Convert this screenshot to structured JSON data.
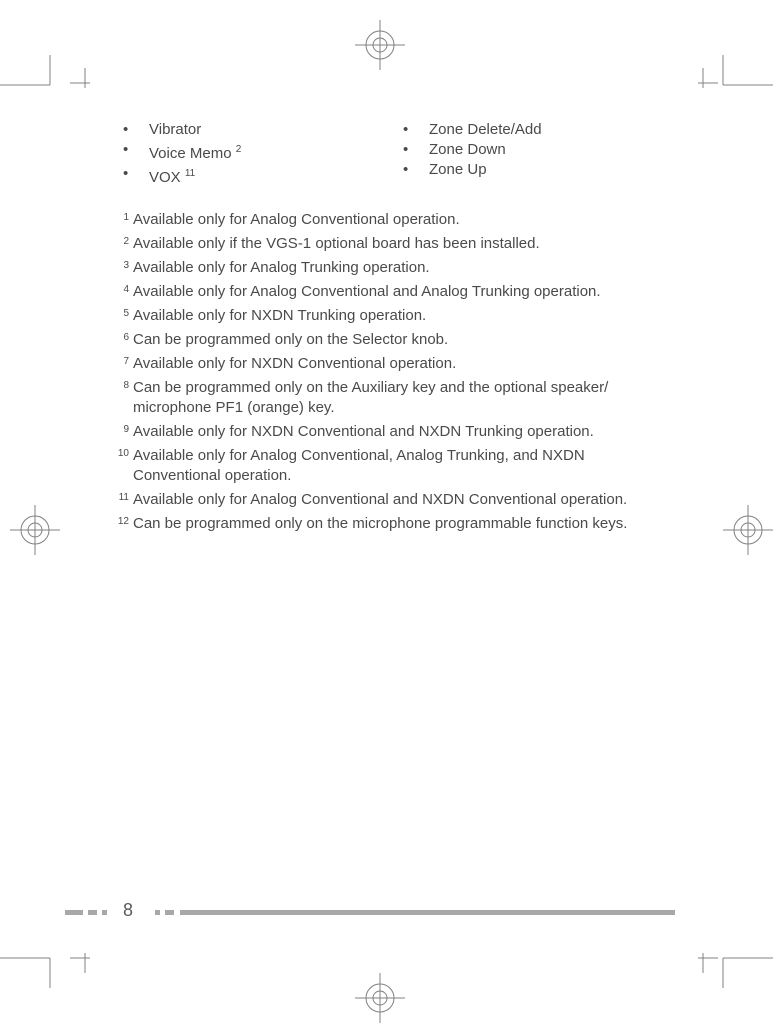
{
  "bullets_left": [
    {
      "text": "Vibrator",
      "sup": ""
    },
    {
      "text": "Voice Memo ",
      "sup": "2"
    },
    {
      "text": "VOX ",
      "sup": "11"
    }
  ],
  "bullets_right": [
    {
      "text": "Zone Delete/Add",
      "sup": ""
    },
    {
      "text": "Zone Down",
      "sup": ""
    },
    {
      "text": "Zone Up",
      "sup": ""
    }
  ],
  "footnotes": [
    {
      "n": "1",
      "t": "Available only for Analog Conventional operation."
    },
    {
      "n": "2",
      "t": "Available only if the VGS-1 optional board has been installed."
    },
    {
      "n": "3",
      "t": "Available only for Analog Trunking operation."
    },
    {
      "n": "4",
      "t": "Available only for Analog Conventional and Analog Trunking operation."
    },
    {
      "n": "5",
      "t": "Available only for NXDN Trunking operation."
    },
    {
      "n": "6",
      "t": "Can be programmed only on the Selector knob."
    },
    {
      "n": "7",
      "t": "Available only for NXDN Conventional operation."
    },
    {
      "n": "8",
      "t": "Can be programmed only on the Auxiliary key and the optional speaker/ microphone PF1 (orange) key."
    },
    {
      "n": "9",
      "t": "Available only for NXDN Conventional and NXDN Trunking operation."
    },
    {
      "n": "10",
      "t": "Available only for Analog Conventional, Analog Trunking, and NXDN Conventional operation."
    },
    {
      "n": "11",
      "t": "Available only for Analog Conventional and NXDN Conventional operation."
    },
    {
      "n": "12",
      "t": "Can be programmed only on the microphone programmable function keys."
    }
  ],
  "page_number": "8",
  "marks": {
    "stroke": "#808080",
    "reg_outer_r": 14,
    "reg_inner_r": 7,
    "cross_len": 20
  },
  "footer": {
    "seg1_color": "#a8a8a8",
    "seg2_color": "#a8a8a8",
    "gap_color": "#ffffff",
    "bar_color": "#a8a8a8"
  }
}
